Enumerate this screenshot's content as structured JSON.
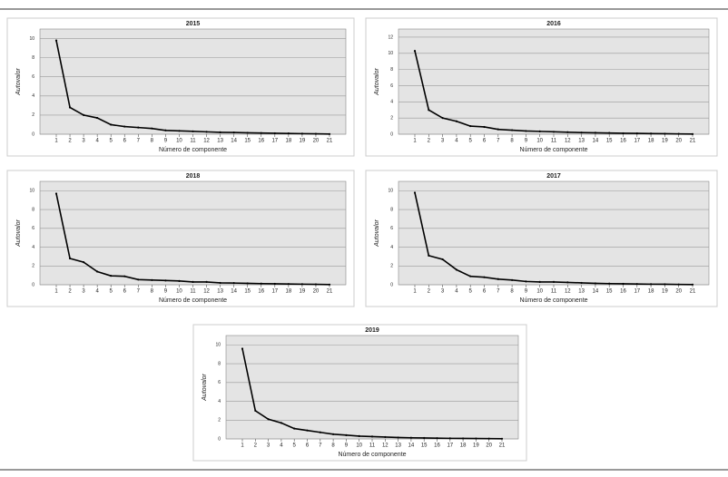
{
  "chart_data": [
    {
      "type": "line",
      "title": "2015",
      "x_label": "Número de componente",
      "y_label": "Autovalor",
      "categories": [
        "1",
        "2",
        "3",
        "4",
        "5",
        "6",
        "7",
        "8",
        "9",
        "10",
        "11",
        "12",
        "13",
        "14",
        "15",
        "16",
        "17",
        "18",
        "19",
        "20",
        "21"
      ],
      "series": [
        {
          "name": "Autovalor",
          "color": "#000000",
          "values": [
            9.8,
            2.8,
            2.0,
            1.7,
            1.0,
            0.8,
            0.7,
            0.6,
            0.4,
            0.35,
            0.3,
            0.25,
            0.2,
            0.18,
            0.15,
            0.12,
            0.1,
            0.08,
            0.06,
            0.04,
            0.02
          ]
        }
      ],
      "ylim": [
        0,
        11
      ],
      "yticks": [
        0,
        2,
        4,
        6,
        8,
        10
      ],
      "grid": true
    },
    {
      "type": "line",
      "title": "2016",
      "x_label": "Número de componente",
      "y_label": "Autovalor",
      "categories": [
        "1",
        "2",
        "3",
        "4",
        "5",
        "6",
        "7",
        "8",
        "9",
        "10",
        "11",
        "12",
        "13",
        "14",
        "15",
        "16",
        "17",
        "18",
        "19",
        "20",
        "21"
      ],
      "series": [
        {
          "name": "Autovalor",
          "color": "#000000",
          "values": [
            10.3,
            3.0,
            2.0,
            1.6,
            1.0,
            0.9,
            0.6,
            0.5,
            0.4,
            0.35,
            0.3,
            0.25,
            0.2,
            0.18,
            0.15,
            0.12,
            0.1,
            0.08,
            0.06,
            0.04,
            0.02
          ]
        }
      ],
      "ylim": [
        0,
        13
      ],
      "yticks": [
        0,
        2,
        4,
        6,
        8,
        10,
        12
      ],
      "grid": true
    },
    {
      "type": "line",
      "title": "2018",
      "x_label": "Número de componente",
      "y_label": "Autovalor",
      "categories": [
        "1",
        "2",
        "3",
        "4",
        "5",
        "6",
        "7",
        "8",
        "9",
        "10",
        "11",
        "12",
        "13",
        "14",
        "15",
        "16",
        "17",
        "18",
        "19",
        "20",
        "21"
      ],
      "series": [
        {
          "name": "Autovalor",
          "color": "#000000",
          "values": [
            9.7,
            2.8,
            2.4,
            1.4,
            0.95,
            0.9,
            0.55,
            0.5,
            0.45,
            0.4,
            0.3,
            0.3,
            0.2,
            0.18,
            0.15,
            0.12,
            0.1,
            0.08,
            0.06,
            0.04,
            0.02
          ]
        }
      ],
      "ylim": [
        0,
        11
      ],
      "yticks": [
        0,
        2,
        4,
        6,
        8,
        10
      ],
      "grid": true
    },
    {
      "type": "line",
      "title": "2017",
      "x_label": "Número de componente",
      "y_label": "Autovalor",
      "categories": [
        "1",
        "2",
        "3",
        "4",
        "5",
        "6",
        "7",
        "8",
        "9",
        "10",
        "11",
        "12",
        "13",
        "14",
        "15",
        "16",
        "17",
        "18",
        "19",
        "20",
        "21"
      ],
      "series": [
        {
          "name": "Autovalor",
          "color": "#000000",
          "values": [
            9.8,
            3.1,
            2.7,
            1.6,
            0.9,
            0.8,
            0.6,
            0.5,
            0.35,
            0.3,
            0.3,
            0.25,
            0.2,
            0.15,
            0.12,
            0.1,
            0.08,
            0.06,
            0.05,
            0.03,
            0.02
          ]
        }
      ],
      "ylim": [
        0,
        11
      ],
      "yticks": [
        0,
        2,
        4,
        6,
        8,
        10
      ],
      "grid": true
    },
    {
      "type": "line",
      "title": "2019",
      "x_label": "Número de componente",
      "y_label": "Autovalor",
      "categories": [
        "1",
        "2",
        "3",
        "4",
        "5",
        "6",
        "7",
        "8",
        "9",
        "10",
        "11",
        "12",
        "13",
        "14",
        "15",
        "16",
        "17",
        "18",
        "19",
        "20",
        "21"
      ],
      "series": [
        {
          "name": "Autovalor",
          "color": "#000000",
          "values": [
            9.6,
            3.0,
            2.1,
            1.7,
            1.1,
            0.9,
            0.7,
            0.5,
            0.4,
            0.3,
            0.25,
            0.2,
            0.15,
            0.12,
            0.1,
            0.08,
            0.06,
            0.05,
            0.04,
            0.03,
            0.02
          ]
        }
      ],
      "ylim": [
        0,
        11
      ],
      "yticks": [
        0,
        2,
        4,
        6,
        8,
        10
      ],
      "grid": true
    }
  ]
}
